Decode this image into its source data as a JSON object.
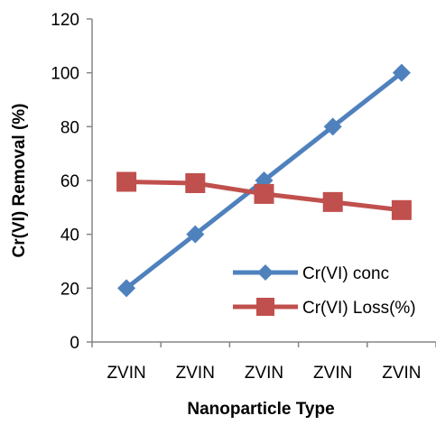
{
  "chart_data": {
    "type": "line",
    "title": "",
    "xlabel": "Nanoparticle Type",
    "ylabel": "Cr(VI) Removal (%)",
    "categories": [
      "ZVIN",
      "ZVIN",
      "ZVIN",
      "ZVIN",
      "ZVIN"
    ],
    "ylim": [
      0,
      120
    ],
    "yticks": [
      "0",
      "20",
      "40",
      "60",
      "80",
      "100",
      "120"
    ],
    "grid": false,
    "legend_position": "bottom-right",
    "series": [
      {
        "name": "Cr(VI) conc",
        "values": [
          20,
          40,
          60,
          80,
          100
        ],
        "color": "#4F81BD",
        "marker": "diamond"
      },
      {
        "name": "Cr(VI) Loss(%)",
        "values": [
          59.5,
          59,
          55,
          52,
          49
        ],
        "color": "#C0504D",
        "marker": "square"
      }
    ]
  }
}
